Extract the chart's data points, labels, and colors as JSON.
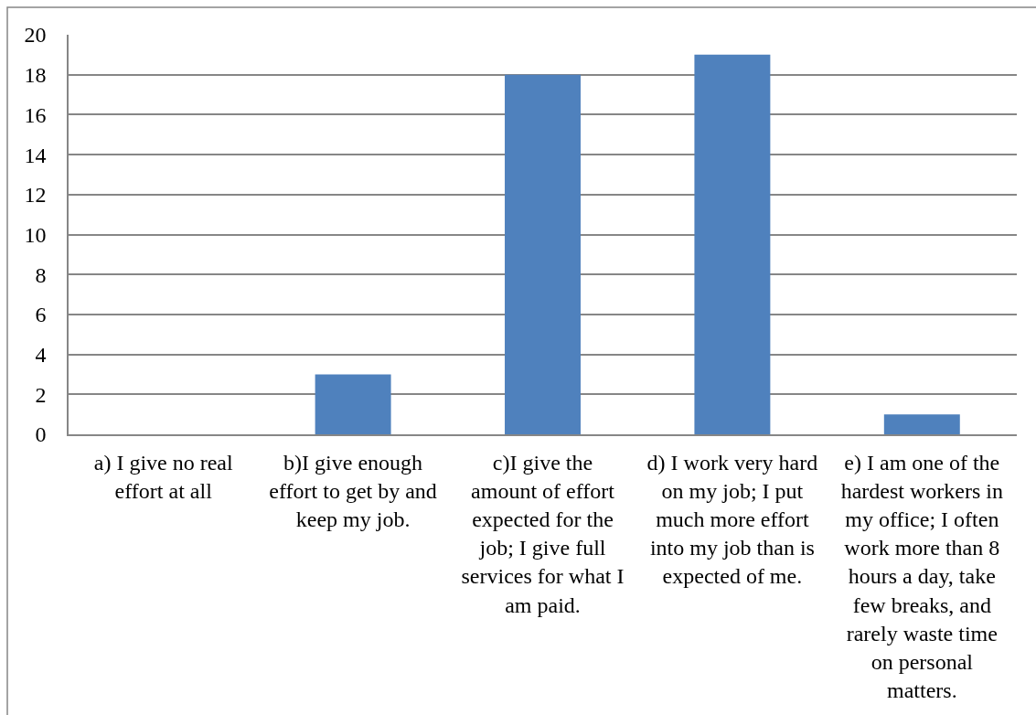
{
  "chart_data": {
    "type": "bar",
    "categories": [
      "a) I give no real\neffort at all",
      "b)I give enough\neffort to get by and\nkeep my job.",
      "c)I give the\namount of effort\nexpected for the\njob; I give full\nservices for what I\nam paid.",
      "d) I work very hard\non my job; I put\nmuch more effort\ninto my job than is\nexpected of me.",
      "e) I am one of the\nhardest workers in\nmy office; I often\nwork more than 8\nhours a day, take\nfew breaks, and\nrarely waste time\non personal\nmatters."
    ],
    "values": [
      0,
      3,
      18,
      19,
      1
    ],
    "color": "#4f81bd",
    "ylim": [
      0,
      20
    ],
    "yticks": [
      0,
      2,
      4,
      6,
      8,
      10,
      12,
      14,
      16,
      18,
      20
    ],
    "grid": "y"
  }
}
